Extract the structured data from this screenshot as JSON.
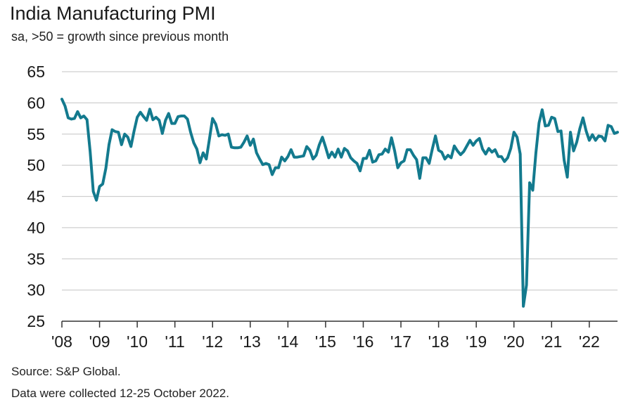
{
  "title": "India Manufacturing PMI",
  "subtitle": "sa, >50 = growth since previous month",
  "source": "Source: S&P Global.",
  "note": "Data were collected 12-25 October 2022.",
  "colors": {
    "line": "#137a8e",
    "grid": "#cfcfcf",
    "axis": "#333333"
  },
  "chart_data": {
    "type": "line",
    "title": "India Manufacturing PMI",
    "subtitle": "sa, >50 = growth since previous month",
    "xlabel": "",
    "ylabel": "",
    "ylim": [
      25,
      65
    ],
    "yticks": [
      65,
      60,
      55,
      50,
      45,
      40,
      35,
      30,
      25
    ],
    "xticks": [
      "'08",
      "'09",
      "'10",
      "'11",
      "'12",
      "'13",
      "'14",
      "'15",
      "'16",
      "'17",
      "'18",
      "'19",
      "'20",
      "'21",
      "'22"
    ],
    "xlim": [
      "2008-01",
      "2022-10"
    ],
    "grid": true,
    "series": [
      {
        "start": "2008-01",
        "frequency": "monthly",
        "values": [
          60.6,
          59.5,
          57.6,
          57.4,
          57.5,
          58.6,
          57.6,
          57.9,
          57.3,
          52.2,
          45.8,
          44.4,
          46.6,
          47.0,
          49.5,
          53.3,
          55.7,
          55.4,
          55.3,
          53.3,
          55.0,
          54.5,
          53.0,
          55.5,
          57.7,
          58.5,
          57.8,
          57.2,
          59.0,
          57.3,
          57.7,
          57.2,
          55.1,
          57.2,
          58.3,
          56.7,
          56.7,
          57.8,
          57.9,
          57.9,
          57.4,
          55.3,
          53.6,
          52.6,
          50.4,
          52.0,
          51.0,
          54.2,
          57.5,
          56.6,
          54.7,
          54.9,
          54.8,
          55.0,
          52.9,
          52.8,
          52.8,
          52.9,
          53.7,
          54.7,
          53.2,
          54.2,
          52.0,
          51.0,
          50.1,
          50.3,
          50.1,
          48.5,
          49.6,
          49.6,
          51.3,
          50.7,
          51.4,
          52.5,
          51.3,
          51.3,
          51.4,
          51.5,
          53.0,
          52.4,
          51.0,
          51.6,
          53.3,
          54.5,
          52.9,
          51.2,
          52.1,
          51.3,
          52.6,
          51.3,
          52.7,
          52.3,
          51.2,
          50.7,
          50.3,
          49.1,
          51.1,
          51.1,
          52.4,
          50.5,
          50.7,
          51.7,
          51.8,
          52.6,
          52.1,
          54.4,
          52.3,
          49.6,
          50.4,
          50.7,
          52.5,
          52.5,
          51.6,
          50.9,
          47.9,
          51.2,
          51.2,
          50.3,
          52.6,
          54.7,
          52.4,
          52.1,
          51.0,
          51.6,
          51.2,
          53.1,
          52.3,
          51.7,
          52.2,
          53.1,
          54.0,
          53.2,
          53.9,
          54.3,
          52.6,
          51.8,
          52.7,
          52.1,
          52.5,
          51.4,
          51.4,
          50.6,
          51.2,
          52.7,
          55.3,
          54.5,
          51.8,
          27.4,
          30.8,
          47.2,
          46.0,
          52.0,
          56.8,
          58.9,
          56.3,
          56.4,
          57.7,
          57.5,
          55.4,
          55.5,
          50.8,
          48.1,
          55.3,
          52.3,
          53.7,
          55.9,
          57.6,
          55.5,
          54.0,
          54.9,
          54.0,
          54.7,
          54.6,
          53.9,
          56.4,
          56.2,
          55.1,
          55.3
        ]
      }
    ]
  }
}
